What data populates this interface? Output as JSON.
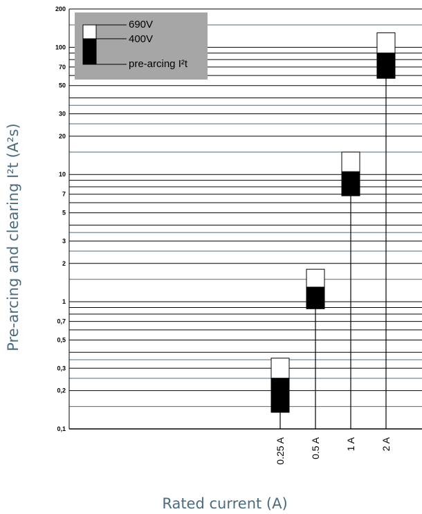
{
  "chart_data": {
    "type": "bar",
    "ylabel": "Pre-arcing and clearing I²t (A²s)",
    "xlabel": "Rated current (A)",
    "yscale": "log",
    "ylim": [
      0.1,
      200
    ],
    "yticks": [
      0.1,
      0.2,
      0.3,
      0.5,
      0.7,
      1,
      2,
      3,
      5,
      7,
      10,
      20,
      30,
      50,
      70,
      100,
      200
    ],
    "ytick_labels": [
      "0,1",
      "0,2",
      "0,3",
      "0,5",
      "0,7",
      "1",
      "2",
      "3",
      "5",
      "7",
      "10",
      "20",
      "30",
      "50",
      "70",
      "100",
      "200"
    ],
    "categories": [
      "0.25 A",
      "0.5 A",
      "1 A",
      "2 A"
    ],
    "series": [
      {
        "name": "pre-arcing I²t",
        "lower": [
          0.135,
          0.88,
          6.8,
          57
        ],
        "upper": [
          0.25,
          1.3,
          10.5,
          90
        ]
      },
      {
        "name": "400V",
        "values": [
          0.25,
          1.3,
          10.5,
          90
        ]
      },
      {
        "name": "690V",
        "values": [
          0.36,
          1.8,
          15,
          130
        ]
      }
    ],
    "colors": {
      "pre_arcing": "#000000",
      "clearing": "#ffffff",
      "legend_bg": "#a6a6a6",
      "minor_grid": "#4a6b80",
      "axis_title": "#4a6b80"
    },
    "legend": {
      "position": "top-left",
      "entries": [
        "690V",
        "400V",
        "pre-arcing I²t"
      ]
    },
    "grid": true
  }
}
